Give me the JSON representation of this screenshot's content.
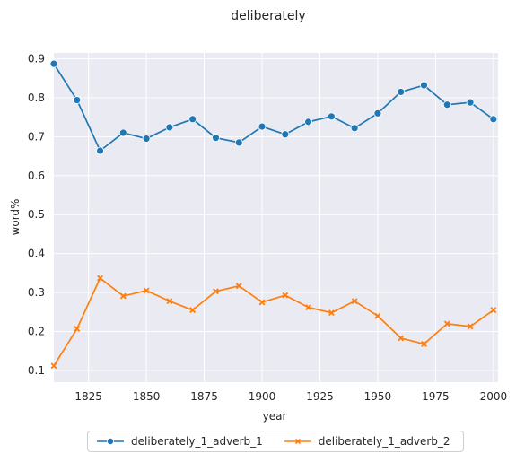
{
  "chart_data": {
    "type": "line",
    "title": "deliberately",
    "xlabel": "year",
    "ylabel": "word%",
    "xlim": [
      1810,
      2002
    ],
    "ylim": [
      0.07,
      0.915
    ],
    "xticks": [
      1825,
      1850,
      1875,
      1900,
      1925,
      1950,
      1975,
      2000
    ],
    "yticks": [
      0.1,
      0.2,
      0.3,
      0.4,
      0.5,
      0.6,
      0.7,
      0.8,
      0.9
    ],
    "grid": true,
    "legend_position": "bottom-center",
    "x": [
      1810,
      1820,
      1830,
      1840,
      1850,
      1860,
      1870,
      1880,
      1890,
      1900,
      1910,
      1920,
      1930,
      1940,
      1950,
      1960,
      1970,
      1980,
      1990,
      2000
    ],
    "series": [
      {
        "name": "deliberately_1_adverb_1",
        "color": "#1f77b4",
        "marker": "circle",
        "values": [
          0.887,
          0.794,
          0.664,
          0.71,
          0.695,
          0.724,
          0.745,
          0.697,
          0.685,
          0.726,
          0.706,
          0.738,
          0.752,
          0.722,
          0.76,
          0.815,
          0.832,
          0.782,
          0.788,
          0.745
        ]
      },
      {
        "name": "deliberately_1_adverb_2",
        "color": "#ff7f0e",
        "marker": "x",
        "values": [
          0.112,
          0.207,
          0.337,
          0.291,
          0.305,
          0.278,
          0.255,
          0.303,
          0.317,
          0.275,
          0.293,
          0.262,
          0.248,
          0.278,
          0.24,
          0.183,
          0.168,
          0.22,
          0.213,
          0.255
        ]
      }
    ]
  }
}
